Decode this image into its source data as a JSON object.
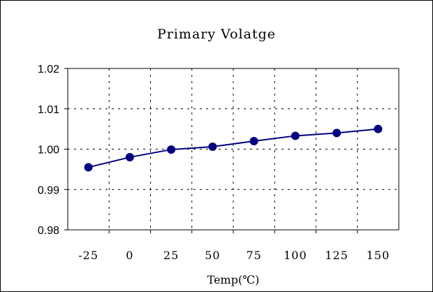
{
  "chart_data": {
    "type": "line",
    "title": "Primary Volatge",
    "xlabel": "Temp(℃)",
    "ylabel": "",
    "categories": [
      "-25",
      "0",
      "25",
      "50",
      "75",
      "100",
      "125",
      "150"
    ],
    "series": [
      {
        "values": [
          0.9955,
          0.998,
          0.9999,
          1.0006,
          1.002,
          1.0033,
          1.004,
          1.005
        ]
      }
    ],
    "ylim": [
      0.98,
      1.02
    ],
    "ytick_labels": [
      "0.98",
      "0.99",
      "1.00",
      "1.01",
      "1.02"
    ],
    "grid": "dashed",
    "legend": "none",
    "colors": {
      "line": "#000080",
      "marker": "#000080",
      "grid": "#000000"
    }
  }
}
